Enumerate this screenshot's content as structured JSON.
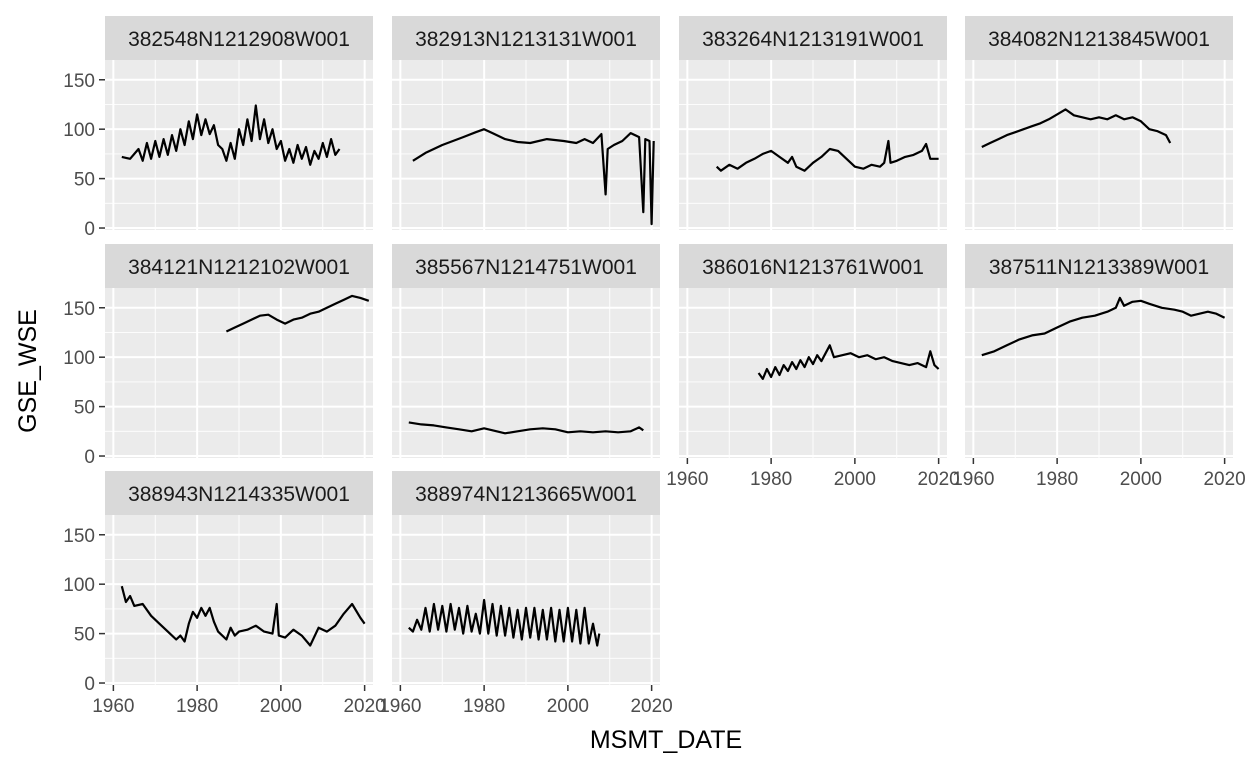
{
  "chart_data": {
    "type": "line",
    "layout": "facet_wrap",
    "ncol": 4,
    "xlabel": "MSMT_DATE",
    "ylabel": "GSE_WSE",
    "xlim": [
      1958,
      2022
    ],
    "ylim": [
      -2,
      170
    ],
    "xticks": [
      1960,
      1980,
      2000,
      2020
    ],
    "yticks": [
      0,
      50,
      100,
      150
    ],
    "colors": {
      "panel": "#ebebeb",
      "strip": "#d9d9d9",
      "grid_major": "#ffffff",
      "line": "#000000"
    },
    "facets": [
      {
        "name": "382548N1212908W001",
        "points": [
          [
            1962,
            72
          ],
          [
            1964,
            70
          ],
          [
            1966,
            80
          ],
          [
            1967,
            68
          ],
          [
            1968,
            86
          ],
          [
            1969,
            70
          ],
          [
            1970,
            88
          ],
          [
            1971,
            72
          ],
          [
            1972,
            90
          ],
          [
            1973,
            74
          ],
          [
            1974,
            94
          ],
          [
            1975,
            78
          ],
          [
            1976,
            100
          ],
          [
            1977,
            84
          ],
          [
            1978,
            108
          ],
          [
            1979,
            90
          ],
          [
            1980,
            115
          ],
          [
            1981,
            94
          ],
          [
            1982,
            110
          ],
          [
            1983,
            95
          ],
          [
            1984,
            104
          ],
          [
            1985,
            84
          ],
          [
            1986,
            80
          ],
          [
            1987,
            68
          ],
          [
            1988,
            86
          ],
          [
            1989,
            70
          ],
          [
            1990,
            100
          ],
          [
            1991,
            84
          ],
          [
            1992,
            110
          ],
          [
            1993,
            88
          ],
          [
            1994,
            124
          ],
          [
            1995,
            90
          ],
          [
            1996,
            110
          ],
          [
            1997,
            86
          ],
          [
            1998,
            100
          ],
          [
            1999,
            80
          ],
          [
            2000,
            88
          ],
          [
            2001,
            68
          ],
          [
            2002,
            80
          ],
          [
            2003,
            66
          ],
          [
            2004,
            84
          ],
          [
            2005,
            70
          ],
          [
            2006,
            82
          ],
          [
            2007,
            64
          ],
          [
            2008,
            78
          ],
          [
            2009,
            70
          ],
          [
            2010,
            86
          ],
          [
            2011,
            72
          ],
          [
            2012,
            90
          ],
          [
            2013,
            74
          ],
          [
            2014,
            80
          ]
        ]
      },
      {
        "name": "382913N1213131W001",
        "points": [
          [
            1963,
            68
          ],
          [
            1966,
            76
          ],
          [
            1970,
            84
          ],
          [
            1975,
            92
          ],
          [
            1978,
            97
          ],
          [
            1980,
            100
          ],
          [
            1982,
            96
          ],
          [
            1985,
            90
          ],
          [
            1988,
            87
          ],
          [
            1991,
            86
          ],
          [
            1995,
            90
          ],
          [
            1999,
            88
          ],
          [
            2002,
            86
          ],
          [
            2004,
            90
          ],
          [
            2006,
            86
          ],
          [
            2008,
            95
          ],
          [
            2009,
            34
          ],
          [
            2009.5,
            80
          ],
          [
            2011,
            84
          ],
          [
            2013,
            88
          ],
          [
            2015,
            96
          ],
          [
            2017,
            92
          ],
          [
            2018,
            16
          ],
          [
            2018.5,
            90
          ],
          [
            2019.5,
            88
          ],
          [
            2020,
            4
          ],
          [
            2020.5,
            88
          ]
        ]
      },
      {
        "name": "383264N1213191W001",
        "points": [
          [
            1967,
            62
          ],
          [
            1968,
            58
          ],
          [
            1970,
            64
          ],
          [
            1972,
            60
          ],
          [
            1974,
            66
          ],
          [
            1976,
            70
          ],
          [
            1978,
            75
          ],
          [
            1980,
            78
          ],
          [
            1982,
            72
          ],
          [
            1984,
            66
          ],
          [
            1985,
            72
          ],
          [
            1986,
            62
          ],
          [
            1988,
            58
          ],
          [
            1990,
            66
          ],
          [
            1992,
            72
          ],
          [
            1994,
            80
          ],
          [
            1996,
            78
          ],
          [
            1998,
            70
          ],
          [
            2000,
            62
          ],
          [
            2002,
            60
          ],
          [
            2004,
            64
          ],
          [
            2006,
            62
          ],
          [
            2007,
            66
          ],
          [
            2008,
            88
          ],
          [
            2008.5,
            66
          ],
          [
            2010,
            68
          ],
          [
            2012,
            72
          ],
          [
            2014,
            74
          ],
          [
            2016,
            78
          ],
          [
            2017,
            85
          ],
          [
            2018,
            70
          ],
          [
            2020,
            70
          ]
        ]
      },
      {
        "name": "384082N1213845W001",
        "points": [
          [
            1962,
            82
          ],
          [
            1964,
            86
          ],
          [
            1966,
            90
          ],
          [
            1968,
            94
          ],
          [
            1970,
            97
          ],
          [
            1972,
            100
          ],
          [
            1974,
            103
          ],
          [
            1976,
            106
          ],
          [
            1978,
            110
          ],
          [
            1980,
            115
          ],
          [
            1982,
            120
          ],
          [
            1984,
            114
          ],
          [
            1986,
            112
          ],
          [
            1988,
            110
          ],
          [
            1990,
            112
          ],
          [
            1992,
            110
          ],
          [
            1994,
            114
          ],
          [
            1996,
            110
          ],
          [
            1998,
            112
          ],
          [
            2000,
            108
          ],
          [
            2002,
            100
          ],
          [
            2004,
            98
          ],
          [
            2006,
            94
          ],
          [
            2007,
            86
          ]
        ]
      },
      {
        "name": "384121N1212102W001",
        "points": [
          [
            1987,
            126
          ],
          [
            1989,
            130
          ],
          [
            1991,
            134
          ],
          [
            1993,
            138
          ],
          [
            1995,
            142
          ],
          [
            1997,
            143
          ],
          [
            1999,
            138
          ],
          [
            2001,
            134
          ],
          [
            2003,
            138
          ],
          [
            2005,
            140
          ],
          [
            2007,
            144
          ],
          [
            2009,
            146
          ],
          [
            2011,
            150
          ],
          [
            2013,
            154
          ],
          [
            2015,
            158
          ],
          [
            2017,
            162
          ],
          [
            2019,
            160
          ],
          [
            2021,
            157
          ]
        ]
      },
      {
        "name": "385567N1214751W001",
        "points": [
          [
            1962,
            34
          ],
          [
            1965,
            32
          ],
          [
            1968,
            31
          ],
          [
            1971,
            29
          ],
          [
            1974,
            27
          ],
          [
            1977,
            25
          ],
          [
            1980,
            28
          ],
          [
            1982,
            26
          ],
          [
            1985,
            23
          ],
          [
            1988,
            25
          ],
          [
            1991,
            27
          ],
          [
            1994,
            28
          ],
          [
            1997,
            27
          ],
          [
            2000,
            24
          ],
          [
            2003,
            25
          ],
          [
            2006,
            24
          ],
          [
            2009,
            25
          ],
          [
            2012,
            24
          ],
          [
            2015,
            25
          ],
          [
            2017,
            29
          ],
          [
            2018,
            26
          ]
        ]
      },
      {
        "name": "386016N1213761W001",
        "points": [
          [
            1977,
            84
          ],
          [
            1978,
            78
          ],
          [
            1979,
            88
          ],
          [
            1980,
            80
          ],
          [
            1981,
            90
          ],
          [
            1982,
            82
          ],
          [
            1983,
            92
          ],
          [
            1984,
            86
          ],
          [
            1985,
            95
          ],
          [
            1986,
            88
          ],
          [
            1987,
            97
          ],
          [
            1988,
            90
          ],
          [
            1989,
            100
          ],
          [
            1990,
            93
          ],
          [
            1991,
            102
          ],
          [
            1992,
            96
          ],
          [
            1993,
            104
          ],
          [
            1994,
            112
          ],
          [
            1995,
            100
          ],
          [
            1997,
            102
          ],
          [
            1999,
            104
          ],
          [
            2001,
            100
          ],
          [
            2003,
            102
          ],
          [
            2005,
            98
          ],
          [
            2007,
            100
          ],
          [
            2009,
            96
          ],
          [
            2011,
            94
          ],
          [
            2013,
            92
          ],
          [
            2015,
            94
          ],
          [
            2017,
            90
          ],
          [
            2018,
            106
          ],
          [
            2019,
            92
          ],
          [
            2020,
            88
          ]
        ]
      },
      {
        "name": "387511N1213389W001",
        "points": [
          [
            1962,
            102
          ],
          [
            1965,
            106
          ],
          [
            1968,
            112
          ],
          [
            1971,
            118
          ],
          [
            1974,
            122
          ],
          [
            1977,
            124
          ],
          [
            1980,
            130
          ],
          [
            1983,
            136
          ],
          [
            1986,
            140
          ],
          [
            1989,
            142
          ],
          [
            1992,
            146
          ],
          [
            1994,
            150
          ],
          [
            1995,
            160
          ],
          [
            1996,
            152
          ],
          [
            1998,
            156
          ],
          [
            2000,
            157
          ],
          [
            2002,
            154
          ],
          [
            2005,
            150
          ],
          [
            2008,
            148
          ],
          [
            2010,
            146
          ],
          [
            2012,
            142
          ],
          [
            2014,
            144
          ],
          [
            2016,
            146
          ],
          [
            2018,
            144
          ],
          [
            2020,
            140
          ]
        ]
      },
      {
        "name": "388943N1214335W001",
        "points": [
          [
            1962,
            98
          ],
          [
            1963,
            82
          ],
          [
            1964,
            88
          ],
          [
            1965,
            78
          ],
          [
            1967,
            80
          ],
          [
            1969,
            68
          ],
          [
            1971,
            60
          ],
          [
            1973,
            52
          ],
          [
            1975,
            44
          ],
          [
            1976,
            48
          ],
          [
            1977,
            42
          ],
          [
            1978,
            60
          ],
          [
            1979,
            72
          ],
          [
            1980,
            66
          ],
          [
            1981,
            76
          ],
          [
            1982,
            68
          ],
          [
            1983,
            76
          ],
          [
            1984,
            62
          ],
          [
            1985,
            52
          ],
          [
            1986,
            48
          ],
          [
            1987,
            44
          ],
          [
            1988,
            56
          ],
          [
            1989,
            48
          ],
          [
            1990,
            52
          ],
          [
            1992,
            54
          ],
          [
            1994,
            58
          ],
          [
            1996,
            52
          ],
          [
            1998,
            50
          ],
          [
            1999,
            80
          ],
          [
            1999.5,
            48
          ],
          [
            2001,
            46
          ],
          [
            2003,
            54
          ],
          [
            2005,
            48
          ],
          [
            2007,
            38
          ],
          [
            2009,
            56
          ],
          [
            2011,
            52
          ],
          [
            2013,
            58
          ],
          [
            2015,
            70
          ],
          [
            2017,
            80
          ],
          [
            2019,
            66
          ],
          [
            2020,
            60
          ]
        ]
      },
      {
        "name": "388974N1213665W001",
        "points": [
          [
            1962,
            56
          ],
          [
            1963,
            52
          ],
          [
            1964,
            64
          ],
          [
            1965,
            54
          ],
          [
            1966,
            76
          ],
          [
            1967,
            52
          ],
          [
            1968,
            80
          ],
          [
            1969,
            54
          ],
          [
            1970,
            78
          ],
          [
            1971,
            52
          ],
          [
            1972,
            80
          ],
          [
            1973,
            54
          ],
          [
            1974,
            76
          ],
          [
            1975,
            50
          ],
          [
            1976,
            78
          ],
          [
            1977,
            52
          ],
          [
            1978,
            70
          ],
          [
            1979,
            50
          ],
          [
            1980,
            84
          ],
          [
            1981,
            50
          ],
          [
            1982,
            80
          ],
          [
            1983,
            48
          ],
          [
            1984,
            78
          ],
          [
            1985,
            48
          ],
          [
            1986,
            76
          ],
          [
            1987,
            46
          ],
          [
            1988,
            74
          ],
          [
            1989,
            44
          ],
          [
            1990,
            76
          ],
          [
            1991,
            46
          ],
          [
            1992,
            76
          ],
          [
            1993,
            44
          ],
          [
            1994,
            74
          ],
          [
            1995,
            44
          ],
          [
            1996,
            76
          ],
          [
            1997,
            42
          ],
          [
            1998,
            74
          ],
          [
            1999,
            42
          ],
          [
            2000,
            76
          ],
          [
            2001,
            42
          ],
          [
            2002,
            74
          ],
          [
            2003,
            40
          ],
          [
            2004,
            76
          ],
          [
            2005,
            40
          ],
          [
            2006,
            60
          ],
          [
            2007,
            38
          ],
          [
            2007.5,
            50
          ]
        ]
      }
    ]
  }
}
